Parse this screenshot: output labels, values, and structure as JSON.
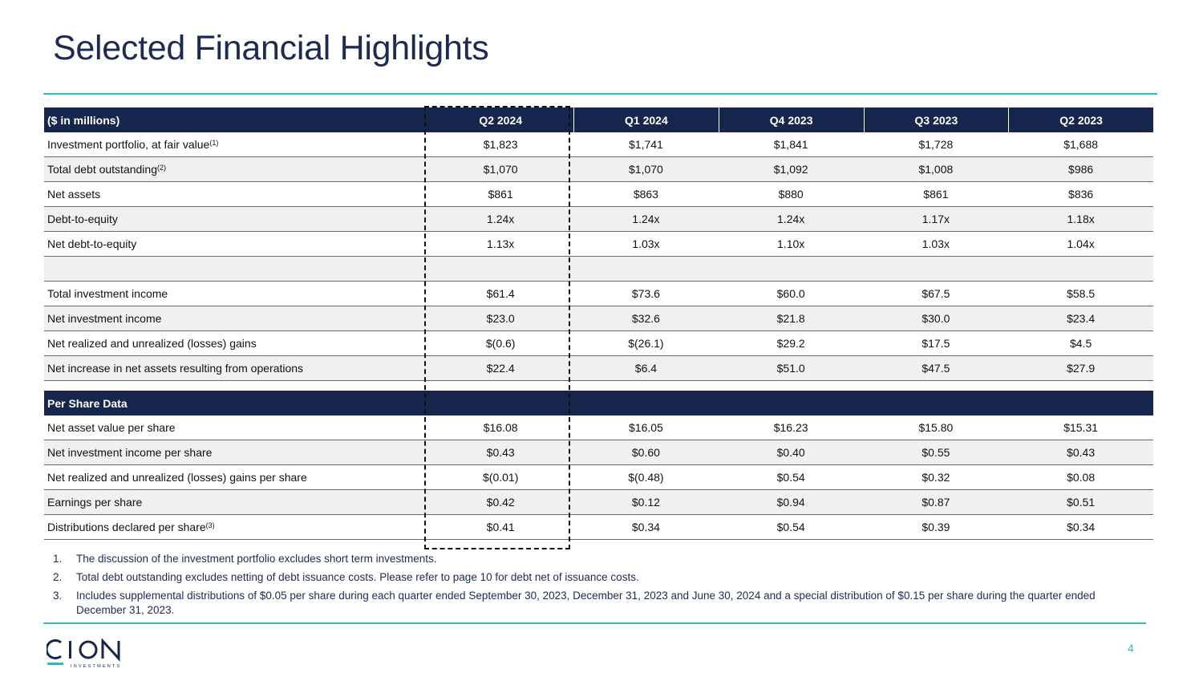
{
  "title": "Selected Financial Highlights",
  "table": {
    "unit_label": "($ in millions)",
    "columns": [
      "Q2 2024",
      "Q1 2024",
      "Q4 2023",
      "Q3 2023",
      "Q2 2023"
    ],
    "rows": [
      {
        "label": "Investment portfolio, at fair value",
        "sup": "(1)",
        "values": [
          "$1,823",
          "$1,741",
          "$1,841",
          "$1,728",
          "$1,688"
        ]
      },
      {
        "label": "Total debt outstanding",
        "sup": "(2)",
        "values": [
          "$1,070",
          "$1,070",
          "$1,092",
          "$1,008",
          "$986"
        ]
      },
      {
        "label": "Net assets",
        "sup": "",
        "values": [
          "$861",
          "$863",
          "$880",
          "$861",
          "$836"
        ]
      },
      {
        "label": "Debt-to-equity",
        "sup": "",
        "values": [
          "1.24x",
          "1.24x",
          "1.24x",
          "1.17x",
          "1.18x"
        ]
      },
      {
        "label": "Net debt-to-equity",
        "sup": "",
        "values": [
          "1.13x",
          "1.03x",
          "1.10x",
          "1.03x",
          "1.04x"
        ]
      },
      {
        "label": "",
        "sup": "",
        "values": [
          "",
          "",
          "",
          "",
          ""
        ]
      },
      {
        "label": "Total investment income",
        "sup": "",
        "values": [
          "$61.4",
          "$73.6",
          "$60.0",
          "$67.5",
          "$58.5"
        ]
      },
      {
        "label": "Net investment income",
        "sup": "",
        "values": [
          "$23.0",
          "$32.6",
          "$21.8",
          "$30.0",
          "$23.4"
        ]
      },
      {
        "label": "Net realized and unrealized (losses) gains",
        "sup": "",
        "values": [
          "$(0.6)",
          "$(26.1)",
          "$29.2",
          "$17.5",
          "$4.5"
        ]
      },
      {
        "label": "Net increase in net assets resulting from operations",
        "sup": "",
        "values": [
          "$22.4",
          "$6.4",
          "$51.0",
          "$47.5",
          "$27.9"
        ]
      }
    ],
    "section_label": "Per Share Data",
    "per_share_rows": [
      {
        "label": "Net asset value per share",
        "sup": "",
        "values": [
          "$16.08",
          "$16.05",
          "$16.23",
          "$15.80",
          "$15.31"
        ]
      },
      {
        "label": "Net investment income per share",
        "sup": "",
        "values": [
          "$0.43",
          "$0.60",
          "$0.40",
          "$0.55",
          "$0.43"
        ]
      },
      {
        "label": "Net realized and unrealized (losses) gains per share",
        "sup": "",
        "values": [
          "$(0.01)",
          "$(0.48)",
          "$0.54",
          "$0.32",
          "$0.08"
        ]
      },
      {
        "label": "Earnings per share",
        "sup": "",
        "values": [
          "$0.42",
          "$0.12",
          "$0.94",
          "$0.87",
          "$0.51"
        ]
      },
      {
        "label": "Distributions declared per share",
        "sup": "(3)",
        "values": [
          "$0.41",
          "$0.34",
          "$0.54",
          "$0.39",
          "$0.34"
        ]
      }
    ]
  },
  "footnotes": [
    {
      "num": "1.",
      "text": "The discussion of the investment portfolio excludes short term investments."
    },
    {
      "num": "2.",
      "text": "Total debt outstanding excludes netting of debt issuance costs. Please refer to page 10 for debt net of issuance costs."
    },
    {
      "num": "3.",
      "text": "Includes supplemental distributions of $0.05 per share during each quarter ended September 30, 2023, December 31, 2023 and June 30, 2024 and a special distribution of $0.15 per share during the quarter ended December 31, 2023."
    }
  ],
  "logo": {
    "name": "CION",
    "tagline": "INVESTMENTS"
  },
  "page_number": "4",
  "colors": {
    "navy": "#16264c",
    "teal": "#2bbcc0",
    "title": "#1d2b50"
  }
}
